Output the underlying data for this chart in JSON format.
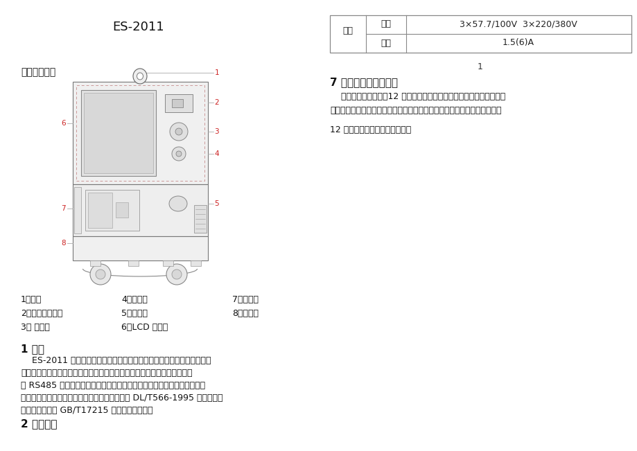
{
  "title": "ES-2011",
  "page_bg": "#ffffff",
  "left_label": "功能示意图：",
  "legend_items": [
    [
      "1、挂钉",
      "4、前进键",
      "7、电池盒"
    ],
    [
      "2、红外通讯窗口",
      "5、编程键",
      "8、端子盒"
    ],
    [
      "3、 后退键",
      "6、LCD 显示屏",
      ""
    ]
  ],
  "section1_title": "1 总则",
  "section1_lines": [
    "    ES-2011 三相系列电子式失压仪是自主研制生产的失压计时仪，采用大",
    "液晶屏多行显示便于抄表和故障判断并带有电压电流指示，具有时钟，红外",
    "和 RS485 通讯功能，计算虚拟电量、记录各种事件、正反有功、正反无功",
    "及四象限无功电量计量功能。该表性能指标符合 DL/T566-1995 电压失压计",
    "时器技术条件和 GB/T17215 系列标准的要求。"
  ],
  "section2_title": "2 技术参数",
  "table_header_col1": "规格",
  "table_row1_col2": "电压",
  "table_row1_col3": "3×57.7/100V  3×220/380V",
  "table_row2_col2": "电流",
  "table_row2_col3": "1.5(6)A",
  "page_num": "1",
  "right_section_title": "7 保证期限与售后服务",
  "right_lines": [
    "    失压仪自发货之日起12 个月内，如用户遵守说明书中的规定要求，且",
    "制造厂铅封仓完整的条件下，若有质量问题，我公司负责免费修理或更换。",
    "",
    "12 个月后，公司提供售后服务。"
  ]
}
